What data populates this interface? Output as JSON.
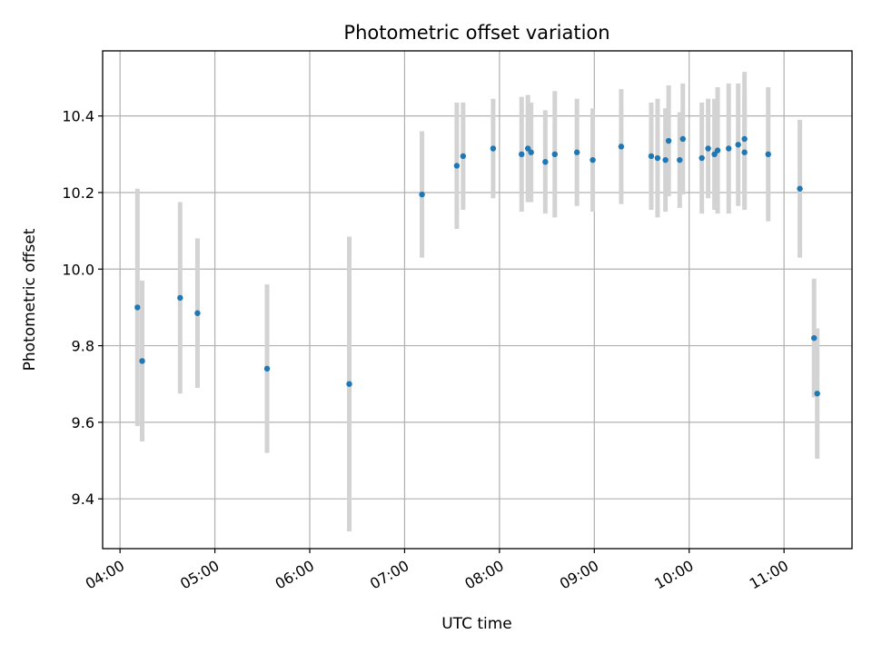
{
  "chart_data": {
    "type": "scatter",
    "title": "Photometric offset variation",
    "xlabel": "UTC time",
    "ylabel": "Photometric offset",
    "x_ticks": [
      "04:00",
      "05:00",
      "06:00",
      "07:00",
      "08:00",
      "09:00",
      "10:00",
      "11:00"
    ],
    "y_ticks": [
      "9.4",
      "9.6",
      "9.8",
      "10.0",
      "10.2",
      "10.4"
    ],
    "xlim": [
      "03:49",
      "11:43"
    ],
    "ylim": [
      9.27,
      10.57
    ],
    "grid": true,
    "colors": {
      "points": "#1f77b4",
      "errorbars": "#d3d3d3",
      "grid": "#b0b0b0"
    },
    "points": [
      {
        "x": "04:11",
        "y": 9.9,
        "err": 0.31
      },
      {
        "x": "04:14",
        "y": 9.76,
        "err": 0.21
      },
      {
        "x": "04:38",
        "y": 9.925,
        "err": 0.25
      },
      {
        "x": "04:49",
        "y": 9.885,
        "err": 0.195
      },
      {
        "x": "05:33",
        "y": 9.74,
        "err": 0.22
      },
      {
        "x": "06:25",
        "y": 9.7,
        "err": 0.385
      },
      {
        "x": "07:11",
        "y": 10.195,
        "err": 0.165
      },
      {
        "x": "07:33",
        "y": 10.27,
        "err": 0.165
      },
      {
        "x": "07:37",
        "y": 10.295,
        "err": 0.14
      },
      {
        "x": "07:56",
        "y": 10.315,
        "err": 0.13
      },
      {
        "x": "08:14",
        "y": 10.3,
        "err": 0.15
      },
      {
        "x": "08:18",
        "y": 10.315,
        "err": 0.14
      },
      {
        "x": "08:20",
        "y": 10.305,
        "err": 0.13
      },
      {
        "x": "08:29",
        "y": 10.28,
        "err": 0.135
      },
      {
        "x": "08:35",
        "y": 10.3,
        "err": 0.165
      },
      {
        "x": "08:49",
        "y": 10.305,
        "err": 0.14
      },
      {
        "x": "08:59",
        "y": 10.285,
        "err": 0.135
      },
      {
        "x": "09:17",
        "y": 10.32,
        "err": 0.15
      },
      {
        "x": "09:36",
        "y": 10.295,
        "err": 0.14
      },
      {
        "x": "09:40",
        "y": 10.29,
        "err": 0.155
      },
      {
        "x": "09:45",
        "y": 10.285,
        "err": 0.135
      },
      {
        "x": "09:47",
        "y": 10.335,
        "err": 0.145
      },
      {
        "x": "09:54",
        "y": 10.285,
        "err": 0.125
      },
      {
        "x": "09:56",
        "y": 10.34,
        "err": 0.145
      },
      {
        "x": "10:08",
        "y": 10.29,
        "err": 0.145
      },
      {
        "x": "10:12",
        "y": 10.315,
        "err": 0.13
      },
      {
        "x": "10:16",
        "y": 10.3,
        "err": 0.145
      },
      {
        "x": "10:18",
        "y": 10.31,
        "err": 0.165
      },
      {
        "x": "10:25",
        "y": 10.315,
        "err": 0.17
      },
      {
        "x": "10:31",
        "y": 10.325,
        "err": 0.16
      },
      {
        "x": "10:35",
        "y": 10.305,
        "err": 0.15
      },
      {
        "x": "10:35",
        "y": 10.34,
        "err": 0.175
      },
      {
        "x": "10:50",
        "y": 10.3,
        "err": 0.175
      },
      {
        "x": "11:10",
        "y": 10.21,
        "err": 0.18
      },
      {
        "x": "11:19",
        "y": 9.82,
        "err": 0.155
      },
      {
        "x": "11:21",
        "y": 9.675,
        "err": 0.17
      }
    ]
  }
}
